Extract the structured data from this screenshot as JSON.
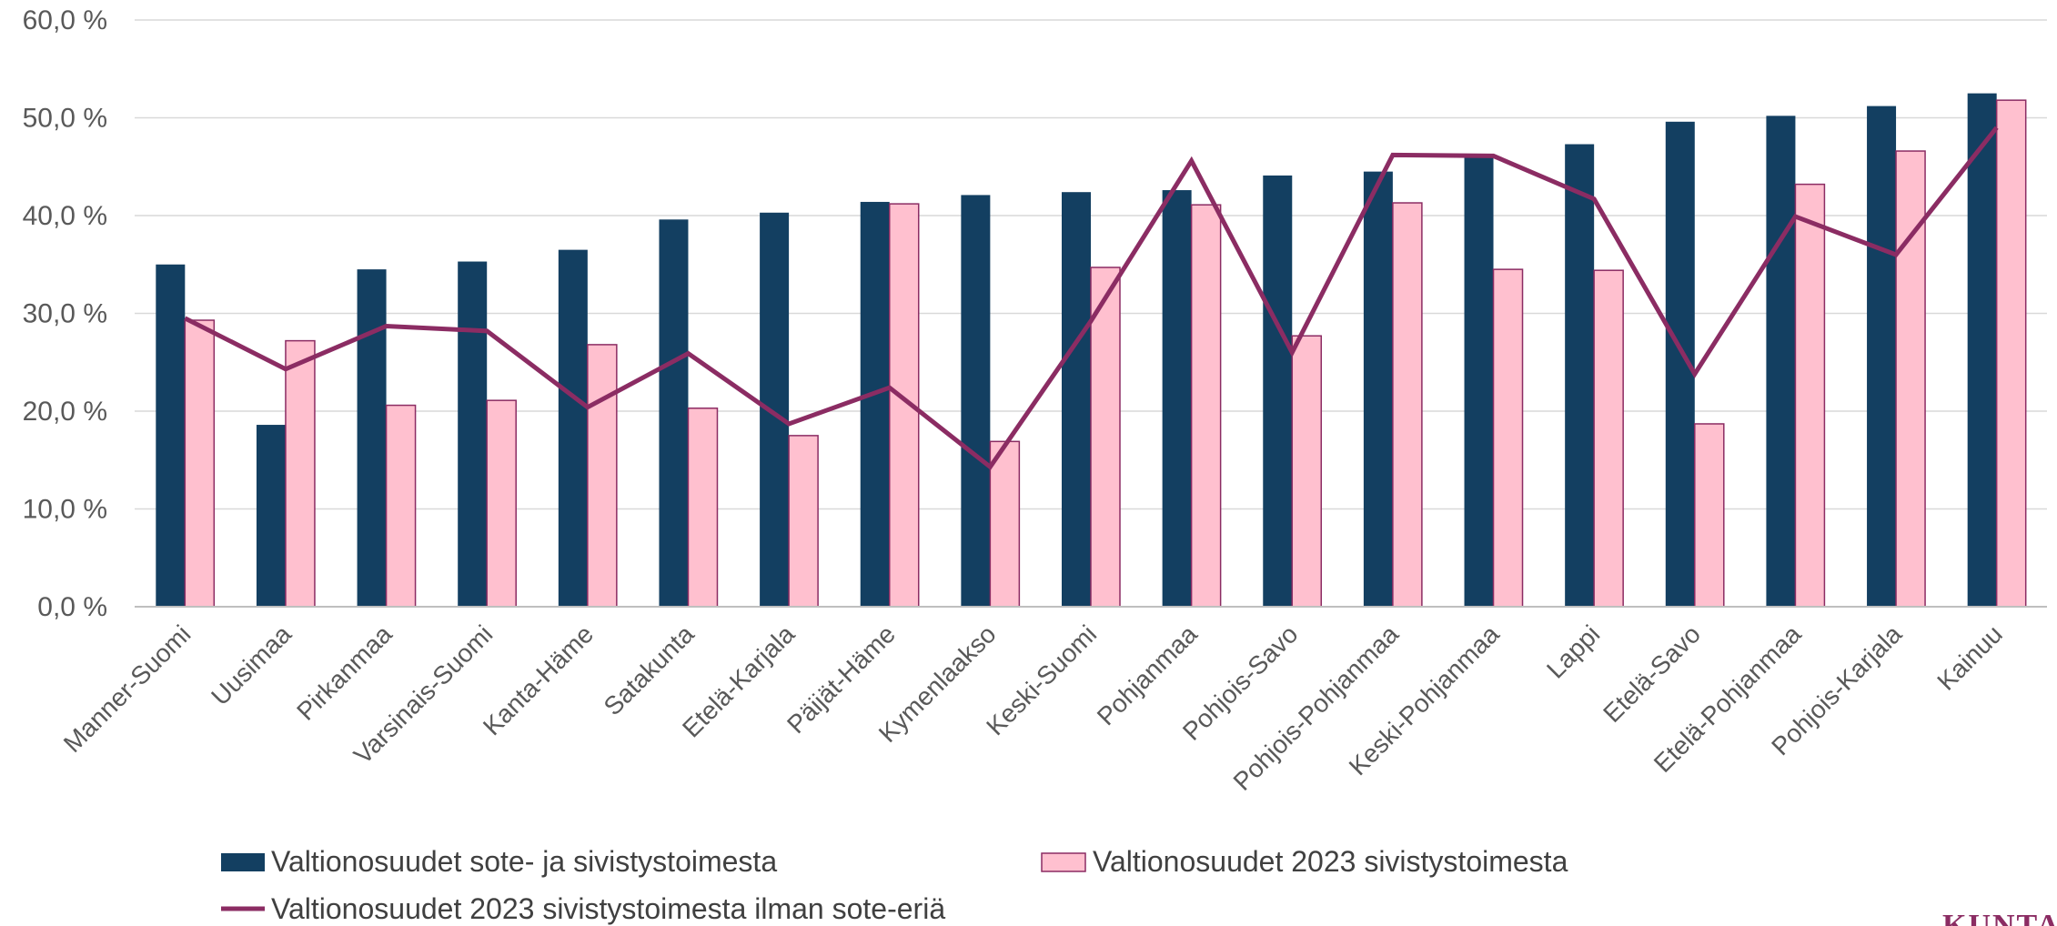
{
  "chart_data": {
    "type": "bar",
    "title": "",
    "xlabel": "",
    "ylabel": "",
    "ylim": [
      0,
      60
    ],
    "y_ticks": [
      "0,0 %",
      "10,0 %",
      "20,0 %",
      "30,0 %",
      "40,0 %",
      "50,0 %",
      "60,0 %"
    ],
    "grid": true,
    "legend_position": "bottom",
    "categories": [
      "Manner-Suomi",
      "Uusimaa",
      "Pirkanmaa",
      "Varsinais-Suomi",
      "Kanta-Häme",
      "Satakunta",
      "Etelä-Karjala",
      "Päijät-Häme",
      "Kymenlaakso",
      "Keski-Suomi",
      "Pohjanmaa",
      "Pohjois-Savo",
      "Pohjois-Pohjanmaa",
      "Keski-Pohjanmaa",
      "Lappi",
      "Etelä-Savo",
      "Etelä-Pohjanmaa",
      "Pohjois-Karjala",
      "Kainuu"
    ],
    "series": [
      {
        "name": "Valtionosuudet sote- ja sivistystoimesta",
        "type": "bar",
        "color": "#133f61",
        "values": [
          35.0,
          18.6,
          34.5,
          35.3,
          36.5,
          39.6,
          40.3,
          41.4,
          42.1,
          42.4,
          42.6,
          44.1,
          44.5,
          46.0,
          47.3,
          49.6,
          50.2,
          51.2,
          52.5
        ]
      },
      {
        "name": "Valtionosuudet 2023 sivistystoimesta",
        "type": "bar",
        "color": "#ffc0cf",
        "border": "#8b2c63",
        "values": [
          29.3,
          27.2,
          20.6,
          21.1,
          26.8,
          20.3,
          17.5,
          41.2,
          16.9,
          34.7,
          41.1,
          27.7,
          41.3,
          34.5,
          34.4,
          18.7,
          43.2,
          46.6,
          51.8
        ]
      },
      {
        "name": "Valtionosuudet 2023 sivistystoimesta ilman sote-eriä",
        "type": "line",
        "color": "#8b2c63",
        "values": [
          29.5,
          24.3,
          28.7,
          28.2,
          20.4,
          25.9,
          18.7,
          22.4,
          14.3,
          29.2,
          45.6,
          26.0,
          46.2,
          46.1,
          41.7,
          23.8,
          39.9,
          36.0,
          49.0
        ]
      }
    ]
  },
  "watermark": {
    "text": "KUNTA",
    "color": "#8b2c63"
  }
}
